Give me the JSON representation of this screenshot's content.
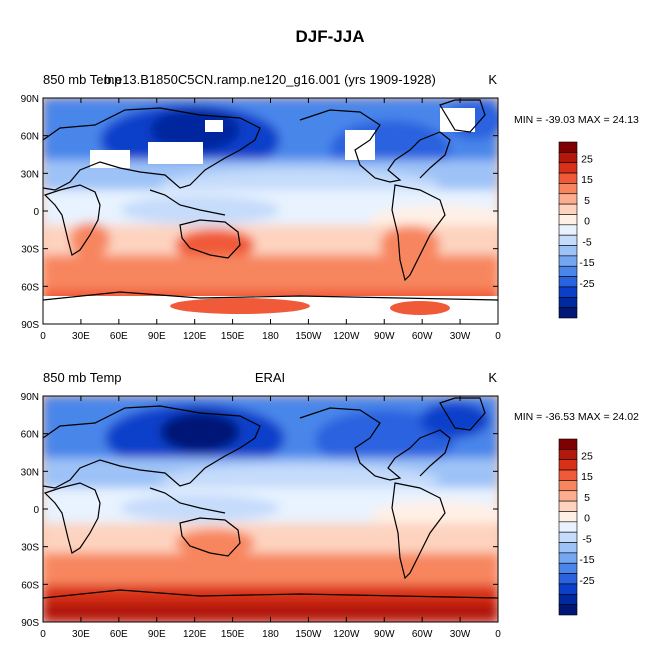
{
  "figure": {
    "title": "DJF-JJA"
  },
  "chart_data": [
    {
      "type": "heatmap",
      "panel": "top",
      "left_title": "850 mb Temp",
      "center_title": "b.e13.B1850C5CN.ramp.ne120_g16.001 (yrs 1909-1928)",
      "units": "K",
      "min_max": "MIN = -39.03 MAX =  24.13",
      "x_ticks": [
        "0",
        "30E",
        "60E",
        "90E",
        "120E",
        "150E",
        "180",
        "150W",
        "120W",
        "90W",
        "60W",
        "30W",
        "0"
      ],
      "y_ticks": [
        "90N",
        "60N",
        "30N",
        "0",
        "30S",
        "60S",
        "90S"
      ],
      "xlim": [
        0,
        360
      ],
      "ylim": [
        -90,
        90
      ],
      "colorbar_labels": [
        "25",
        "15",
        "5",
        "0",
        "-5",
        "-15",
        "-25"
      ],
      "missing_data_shown": true
    },
    {
      "type": "heatmap",
      "panel": "bottom",
      "left_title": "850 mb Temp",
      "center_title": "ERAI",
      "units": "K",
      "min_max": "MIN = -36.53 MAX =  24.02",
      "x_ticks": [
        "0",
        "30E",
        "60E",
        "90E",
        "120E",
        "150E",
        "180",
        "150W",
        "120W",
        "90W",
        "60W",
        "30W",
        "0"
      ],
      "y_ticks": [
        "90N",
        "60N",
        "30N",
        "0",
        "30S",
        "60S",
        "90S"
      ],
      "xlim": [
        0,
        360
      ],
      "ylim": [
        -90,
        90
      ],
      "colorbar_labels": [
        "25",
        "15",
        "5",
        "0",
        "-5",
        "-15",
        "-25"
      ],
      "missing_data_shown": false
    }
  ],
  "palette": [
    "#7f0000",
    "#b2180b",
    "#d93018",
    "#f05a38",
    "#f7865e",
    "#fcae8f",
    "#fdd3bf",
    "#fff0e6",
    "#e8f3ff",
    "#c6dcfb",
    "#9dc2f7",
    "#74a6f2",
    "#4a86ea",
    "#2a62df",
    "#0b3fca",
    "#00289f",
    "#001777"
  ]
}
